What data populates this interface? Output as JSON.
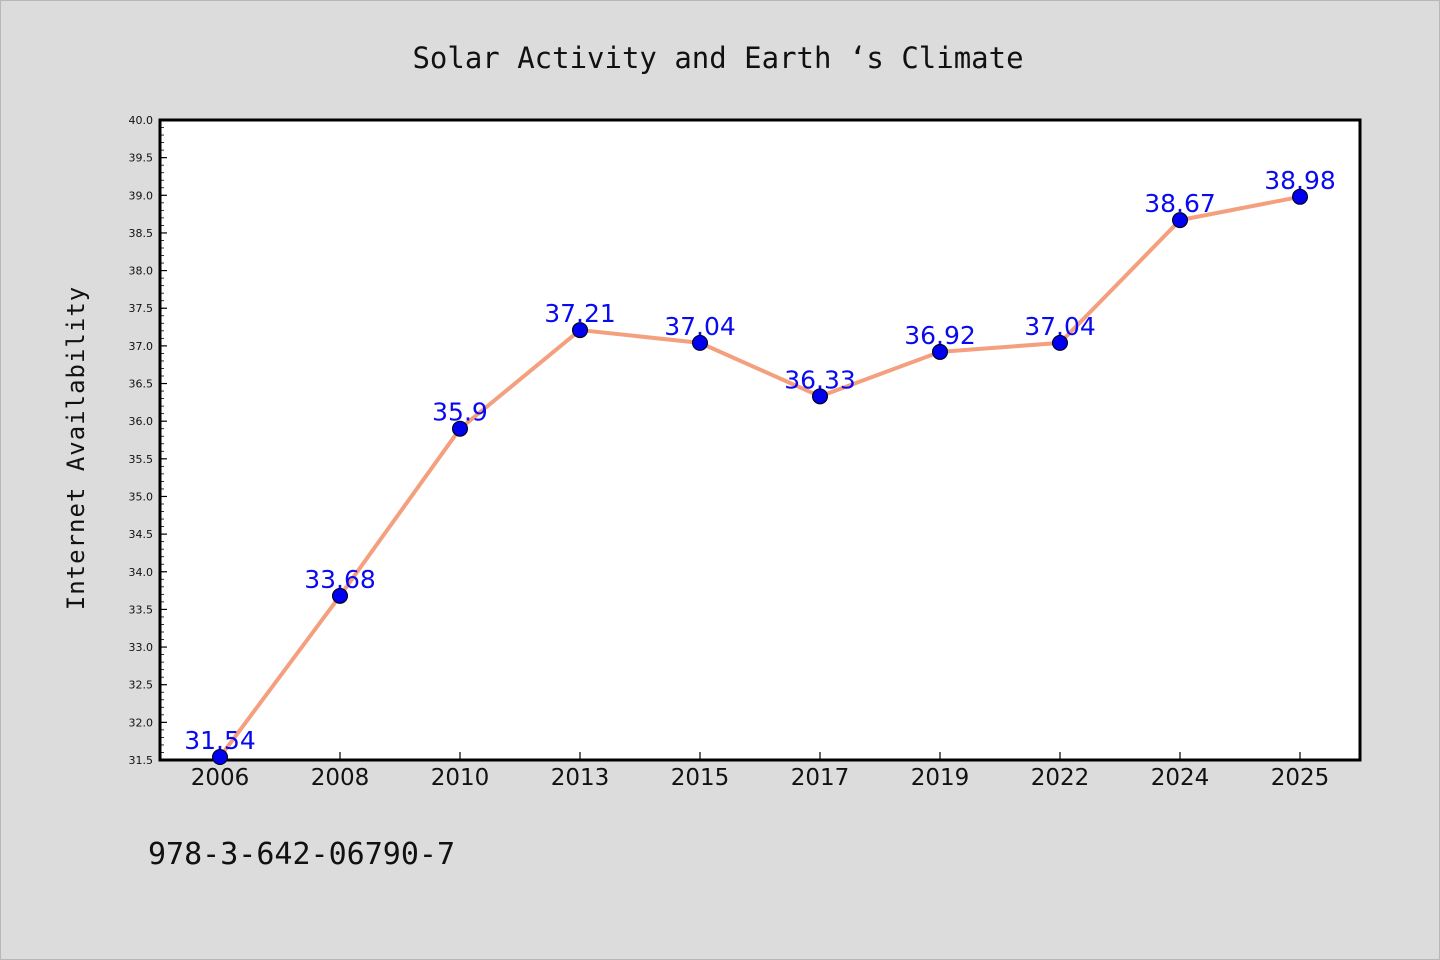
{
  "chart_data": {
    "type": "line",
    "title": "Solar Activity and Earth ‘s Climate",
    "xlabel": "",
    "ylabel": "Internet Availability",
    "categories": [
      "2006",
      "2008",
      "2010",
      "2013",
      "2015",
      "2017",
      "2019",
      "2022",
      "2024",
      "2025"
    ],
    "series": [
      {
        "values": [
          31.54,
          33.68,
          35.9,
          37.21,
          37.04,
          36.33,
          36.92,
          37.04,
          38.67,
          38.98
        ],
        "labels": [
          "31.54",
          "33.68",
          "35.9",
          "37.21",
          "37.04",
          "36.33",
          "36.92",
          "37.04",
          "38.67",
          "38.98"
        ],
        "line_color": "#f4a07e",
        "marker_color": "#0000ee"
      }
    ],
    "ylim": [
      31.5,
      40.0
    ],
    "yticks": [
      "31.5",
      "32.0",
      "32.5",
      "33.0",
      "33.5",
      "34.0",
      "34.5",
      "35.0",
      "35.5",
      "36.0",
      "36.5",
      "37.0",
      "37.5",
      "38.0",
      "38.5",
      "39.0",
      "39.5",
      "40.0"
    ],
    "grid": false,
    "legend": "none"
  },
  "footer": {
    "isbn": "978-3-642-06790-7"
  },
  "colors": {
    "background": "#dcdcdc",
    "plot_background": "#ffffff",
    "label_color": "#0a0af0"
  }
}
